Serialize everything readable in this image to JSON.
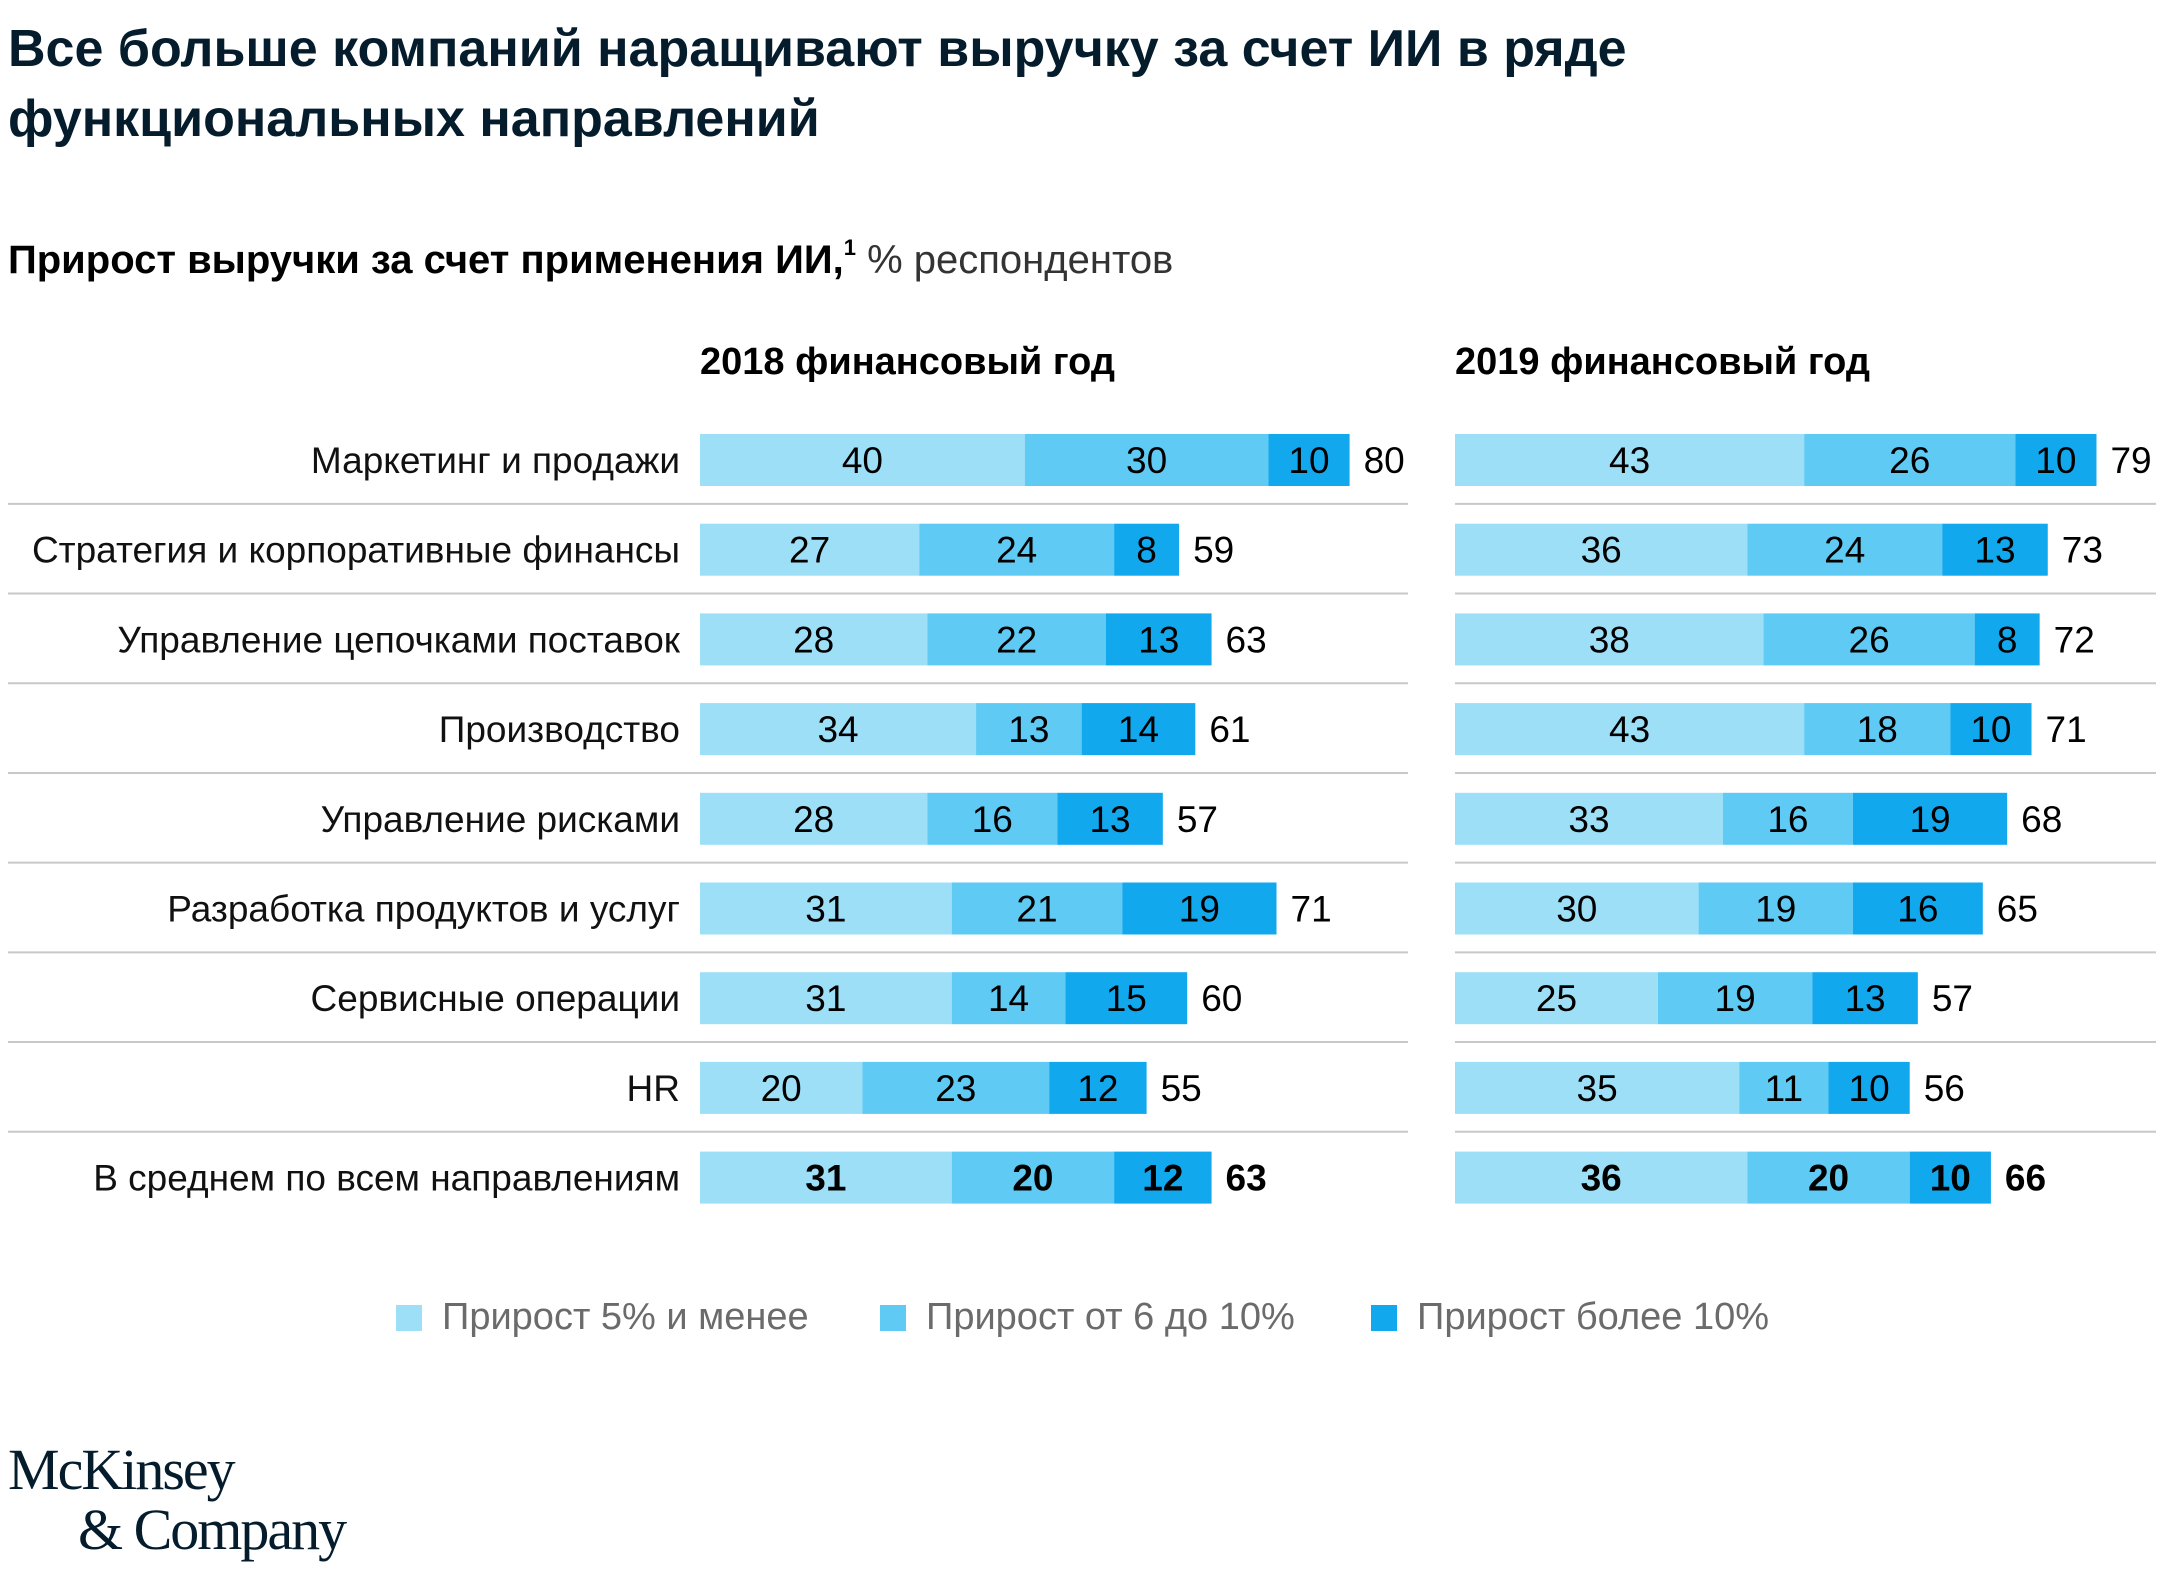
{
  "title": "Все больше компаний наращивают выручку за счет ИИ в ряде функциональных направлений",
  "subtitle": {
    "main": "Прирост выручки за счет применения ИИ,",
    "footnote": "1",
    "rest": " % респондентов"
  },
  "colors": {
    "low": "#9edff8",
    "mid": "#5fcaf4",
    "high": "#12a8ee",
    "divider": "#c8c8c8",
    "text": "#000000"
  },
  "chart_data": {
    "type": "bar",
    "orientation": "horizontal-stacked",
    "categories": [
      "Маркетинг и продажи",
      "Стратегия и корпоративные финансы",
      "Управление цепочками поставок",
      "Производство",
      "Управление рисками",
      "Разработка продуктов и услуг",
      "Сервисные операции",
      "HR",
      "В среднем по всем направлениям"
    ],
    "panels": [
      {
        "title": "2018 финансовый год",
        "series": [
          {
            "name": "Прирост 5% и менее",
            "values": [
              40,
              27,
              28,
              34,
              28,
              31,
              31,
              20,
              31
            ]
          },
          {
            "name": "Прирост от 6 до 10%",
            "values": [
              30,
              24,
              22,
              13,
              16,
              21,
              14,
              23,
              20
            ]
          },
          {
            "name": "Прирост более 10%",
            "values": [
              10,
              8,
              13,
              14,
              13,
              19,
              15,
              12,
              12
            ]
          }
        ],
        "totals": [
          80,
          59,
          63,
          61,
          57,
          71,
          60,
          55,
          63
        ]
      },
      {
        "title": "2019 финансовый год",
        "series": [
          {
            "name": "Прирост 5% и менее",
            "values": [
              43,
              36,
              38,
              43,
              33,
              30,
              25,
              35,
              36
            ]
          },
          {
            "name": "Прирост от 6 до 10%",
            "values": [
              26,
              24,
              26,
              18,
              16,
              19,
              19,
              11,
              20
            ]
          },
          {
            "name": "Прирост более 10%",
            "values": [
              10,
              13,
              8,
              10,
              19,
              16,
              13,
              10,
              10
            ]
          }
        ],
        "totals": [
          79,
          73,
          72,
          71,
          68,
          65,
          57,
          56,
          66
        ]
      }
    ],
    "legend": [
      "Прирост 5% и менее",
      "Прирост от 6 до 10%",
      "Прирост более 10%"
    ],
    "legend_position": "bottom",
    "emphasized_row": "В среднем по всем направлениям"
  },
  "logo": {
    "line1": "McKinsey",
    "line2": "& Company"
  }
}
